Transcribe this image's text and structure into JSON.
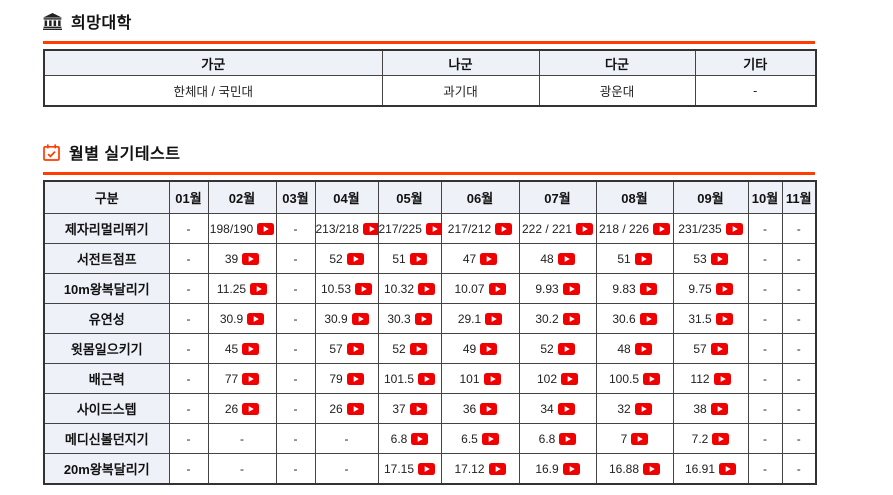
{
  "colors": {
    "accent": "#ff3d00",
    "header_bg": "#eef1f8",
    "border": "#444444",
    "video_red": "#f00000"
  },
  "university": {
    "title": "희망대학",
    "icon": "museum-icon",
    "headers": [
      "가군",
      "나군",
      "다군",
      "기타"
    ],
    "values": [
      "한체대 / 국민대",
      "과기대",
      "광운대",
      "-"
    ]
  },
  "monthly": {
    "title": "월별 실기테스트",
    "icon": "calendar-check-icon",
    "corner_header": "구분",
    "months": [
      "01월",
      "02월",
      "03월",
      "04월",
      "05월",
      "06월",
      "07월",
      "08월",
      "09월",
      "10월",
      "11월"
    ],
    "rows": [
      {
        "label": "제자리멀리뛰기",
        "cells": [
          {
            "t": "-"
          },
          {
            "t": "198/190",
            "v": true
          },
          {
            "t": "-"
          },
          {
            "t": "213/218",
            "v": true
          },
          {
            "t": "217/225",
            "v": true
          },
          {
            "t": "217/212",
            "v": true
          },
          {
            "t": "222 / 221",
            "v": true
          },
          {
            "t": "218 / 226",
            "v": true
          },
          {
            "t": "231/235",
            "v": true
          },
          {
            "t": "-"
          },
          {
            "t": "-"
          }
        ]
      },
      {
        "label": "서전트점프",
        "cells": [
          {
            "t": "-"
          },
          {
            "t": "39",
            "v": true
          },
          {
            "t": "-"
          },
          {
            "t": "52",
            "v": true
          },
          {
            "t": "51",
            "v": true
          },
          {
            "t": "47",
            "v": true
          },
          {
            "t": "48",
            "v": true
          },
          {
            "t": "51",
            "v": true
          },
          {
            "t": "53",
            "v": true
          },
          {
            "t": "-"
          },
          {
            "t": "-"
          }
        ]
      },
      {
        "label": "10m왕복달리기",
        "cells": [
          {
            "t": "-"
          },
          {
            "t": "11.25",
            "v": true
          },
          {
            "t": "-"
          },
          {
            "t": "10.53",
            "v": true
          },
          {
            "t": "10.32",
            "v": true
          },
          {
            "t": "10.07",
            "v": true
          },
          {
            "t": "9.93",
            "v": true
          },
          {
            "t": "9.83",
            "v": true
          },
          {
            "t": "9.75",
            "v": true
          },
          {
            "t": "-"
          },
          {
            "t": "-"
          }
        ]
      },
      {
        "label": "유연성",
        "cells": [
          {
            "t": "-"
          },
          {
            "t": "30.9",
            "v": true
          },
          {
            "t": "-"
          },
          {
            "t": "30.9",
            "v": true
          },
          {
            "t": "30.3",
            "v": true
          },
          {
            "t": "29.1",
            "v": true
          },
          {
            "t": "30.2",
            "v": true
          },
          {
            "t": "30.6",
            "v": true
          },
          {
            "t": "31.5",
            "v": true
          },
          {
            "t": "-"
          },
          {
            "t": "-"
          }
        ]
      },
      {
        "label": "윗몸일으키기",
        "cells": [
          {
            "t": "-"
          },
          {
            "t": "45",
            "v": true
          },
          {
            "t": "-"
          },
          {
            "t": "57",
            "v": true
          },
          {
            "t": "52",
            "v": true
          },
          {
            "t": "49",
            "v": true
          },
          {
            "t": "52",
            "v": true
          },
          {
            "t": "48",
            "v": true
          },
          {
            "t": "57",
            "v": true
          },
          {
            "t": "-"
          },
          {
            "t": "-"
          }
        ]
      },
      {
        "label": "배근력",
        "cells": [
          {
            "t": "-"
          },
          {
            "t": "77",
            "v": true
          },
          {
            "t": "-"
          },
          {
            "t": "79",
            "v": true
          },
          {
            "t": "101.5",
            "v": true
          },
          {
            "t": "101",
            "v": true
          },
          {
            "t": "102",
            "v": true
          },
          {
            "t": "100.5",
            "v": true
          },
          {
            "t": "112",
            "v": true
          },
          {
            "t": "-"
          },
          {
            "t": "-"
          }
        ]
      },
      {
        "label": "사이드스텝",
        "cells": [
          {
            "t": "-"
          },
          {
            "t": "26",
            "v": true
          },
          {
            "t": "-"
          },
          {
            "t": "26",
            "v": true
          },
          {
            "t": "37",
            "v": true
          },
          {
            "t": "36",
            "v": true
          },
          {
            "t": "34",
            "v": true
          },
          {
            "t": "32",
            "v": true
          },
          {
            "t": "38",
            "v": true
          },
          {
            "t": "-"
          },
          {
            "t": "-"
          }
        ]
      },
      {
        "label": "메디신볼던지기",
        "cells": [
          {
            "t": "-"
          },
          {
            "t": "-"
          },
          {
            "t": "-"
          },
          {
            "t": "-"
          },
          {
            "t": "6.8",
            "v": true
          },
          {
            "t": "6.5",
            "v": true
          },
          {
            "t": "6.8",
            "v": true
          },
          {
            "t": "7",
            "v": true
          },
          {
            "t": "7.2",
            "v": true
          },
          {
            "t": "-"
          },
          {
            "t": "-"
          }
        ]
      },
      {
        "label": "20m왕복달리기",
        "cells": [
          {
            "t": "-"
          },
          {
            "t": "-"
          },
          {
            "t": "-"
          },
          {
            "t": "-"
          },
          {
            "t": "17.15",
            "v": true
          },
          {
            "t": "17.12",
            "v": true
          },
          {
            "t": "16.9",
            "v": true
          },
          {
            "t": "16.88",
            "v": true
          },
          {
            "t": "16.91",
            "v": true
          },
          {
            "t": "-"
          },
          {
            "t": "-"
          }
        ]
      }
    ]
  }
}
